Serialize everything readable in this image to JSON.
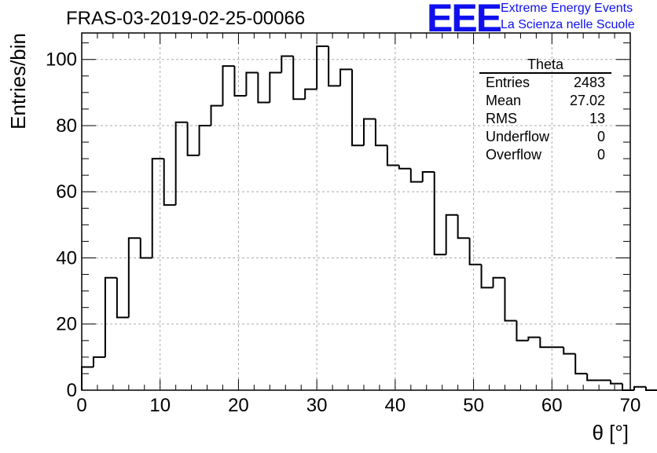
{
  "title": "FRAS-03-2019-02-25-00066",
  "logo": {
    "text": "EEE",
    "line1": "Extreme Energy Events",
    "line2": "La Scienza nelle Scuole",
    "color": "#1010ee"
  },
  "stats_box": {
    "title": "Theta",
    "rows": [
      {
        "label": "Entries",
        "value": "2483"
      },
      {
        "label": "Mean",
        "value": "27.02"
      },
      {
        "label": "RMS",
        "value": "13"
      },
      {
        "label": "Underflow",
        "value": "0"
      },
      {
        "label": "Overflow",
        "value": "0"
      }
    ]
  },
  "chart_data": {
    "type": "bar",
    "style": "step-histogram",
    "xlabel": "θ [°]",
    "ylabel": "Entries/bin",
    "xlim": [
      0,
      70
    ],
    "ylim": [
      0,
      108
    ],
    "x_ticks": [
      0,
      10,
      20,
      30,
      40,
      50,
      60,
      70
    ],
    "y_ticks": [
      0,
      20,
      40,
      60,
      80,
      100
    ],
    "grid": true,
    "legend": "none",
    "bin_width": 1.5,
    "bin_edges_start": 0,
    "values": [
      7,
      10,
      34,
      22,
      46,
      40,
      70,
      56,
      81,
      71,
      80,
      86,
      98,
      89,
      96,
      87,
      96,
      101,
      88,
      91,
      104,
      92,
      97,
      74,
      82,
      74,
      68,
      67,
      63,
      66,
      41,
      53,
      46,
      38,
      31,
      34,
      21,
      15,
      16,
      13,
      13,
      11,
      5,
      3,
      3,
      2,
      0,
      1,
      0
    ]
  }
}
